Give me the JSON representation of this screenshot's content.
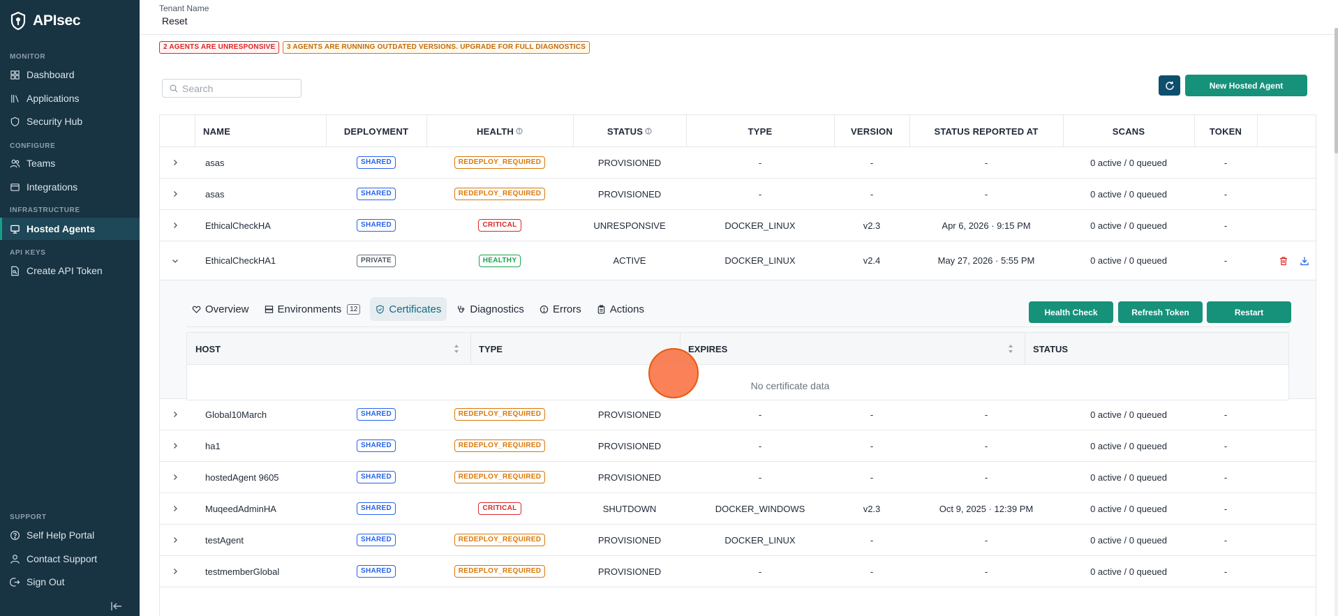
{
  "app": {
    "brand": "APIsec"
  },
  "sidebar": {
    "sections": {
      "monitor": "MONITOR",
      "configure": "CONFIGURE",
      "infrastructure": "INFRASTRUCTURE",
      "api_keys": "API KEYS",
      "support": "SUPPORT"
    },
    "items": {
      "dashboard": "Dashboard",
      "applications": "Applications",
      "security_hub": "Security Hub",
      "teams": "Teams",
      "integrations": "Integrations",
      "hosted_agents": "Hosted Agents",
      "create_api_token": "Create API Token",
      "self_help": "Self Help Portal",
      "contact_support": "Contact Support",
      "sign_out": "Sign Out"
    }
  },
  "header": {
    "tenant_label": "Tenant Name",
    "tenant_value": "Reset"
  },
  "alerts": {
    "unresponsive": "2 AGENTS ARE UNRESPONSIVE",
    "outdated": "3 AGENTS ARE RUNNING OUTDATED VERSIONS. UPGRADE FOR FULL DIAGNOSTICS"
  },
  "toolbar": {
    "search_placeholder": "Search",
    "new_button": "New Hosted Agent"
  },
  "table": {
    "columns": {
      "name": "NAME",
      "deployment": "DEPLOYMENT",
      "health": "HEALTH",
      "status": "STATUS",
      "type": "TYPE",
      "version": "VERSION",
      "reported": "STATUS REPORTED AT",
      "scans": "SCANS",
      "token": "TOKEN"
    },
    "rows": [
      {
        "name": "asas",
        "deployment": "SHARED",
        "health": "REDEPLOY_REQUIRED",
        "status": "PROVISIONED",
        "type": "-",
        "version": "-",
        "reported": "-",
        "scans": "0 active / 0 queued",
        "token": "-"
      },
      {
        "name": "asas",
        "deployment": "SHARED",
        "health": "REDEPLOY_REQUIRED",
        "status": "PROVISIONED",
        "type": "-",
        "version": "-",
        "reported": "-",
        "scans": "0 active / 0 queued",
        "token": "-"
      },
      {
        "name": "EthicalCheckHA",
        "deployment": "SHARED",
        "health": "CRITICAL",
        "status": "UNRESPONSIVE",
        "type": "DOCKER_LINUX",
        "version": "v2.3",
        "reported": "Apr 6, 2026 · 9:15 PM",
        "scans": "0 active / 0 queued",
        "token": "-"
      },
      {
        "name": "EthicalCheckHA1",
        "deployment": "PRIVATE",
        "health": "HEALTHY",
        "status": "ACTIVE",
        "type": "DOCKER_LINUX",
        "version": "v2.4",
        "reported": "May 27, 2026 · 5:55 PM",
        "scans": "0 active / 0 queued",
        "token": "-"
      },
      {
        "name": "Global10March",
        "deployment": "SHARED",
        "health": "REDEPLOY_REQUIRED",
        "status": "PROVISIONED",
        "type": "-",
        "version": "-",
        "reported": "-",
        "scans": "0 active / 0 queued",
        "token": "-"
      },
      {
        "name": "ha1",
        "deployment": "SHARED",
        "health": "REDEPLOY_REQUIRED",
        "status": "PROVISIONED",
        "type": "-",
        "version": "-",
        "reported": "-",
        "scans": "0 active / 0 queued",
        "token": "-"
      },
      {
        "name": "hostedAgent 9605",
        "deployment": "SHARED",
        "health": "REDEPLOY_REQUIRED",
        "status": "PROVISIONED",
        "type": "-",
        "version": "-",
        "reported": "-",
        "scans": "0 active / 0 queued",
        "token": "-"
      },
      {
        "name": "MuqeedAdminHA",
        "deployment": "SHARED",
        "health": "CRITICAL",
        "status": "SHUTDOWN",
        "type": "DOCKER_WINDOWS",
        "version": "v2.3",
        "reported": "Oct 9, 2025 · 12:39 PM",
        "scans": "0 active / 0 queued",
        "token": "-"
      },
      {
        "name": "testAgent",
        "deployment": "SHARED",
        "health": "REDEPLOY_REQUIRED",
        "status": "PROVISIONED",
        "type": "DOCKER_LINUX",
        "version": "-",
        "reported": "-",
        "scans": "0 active / 0 queued",
        "token": "-"
      },
      {
        "name": "testmemberGlobal",
        "deployment": "SHARED",
        "health": "REDEPLOY_REQUIRED",
        "status": "PROVISIONED",
        "type": "-",
        "version": "-",
        "reported": "-",
        "scans": "0 active / 0 queued",
        "token": "-"
      }
    ]
  },
  "expanded": {
    "tabs": {
      "overview": "Overview",
      "environments": "Environments",
      "environments_count": "12",
      "certificates": "Certificates",
      "diagnostics": "Diagnostics",
      "errors": "Errors",
      "actions": "Actions"
    },
    "buttons": {
      "health_check": "Health Check",
      "refresh_token": "Refresh Token",
      "restart": "Restart"
    },
    "cert_columns": {
      "host": "HOST",
      "type": "TYPE",
      "expires": "EXPIRES",
      "status": "STATUS"
    },
    "empty": "No certificate data"
  },
  "colors": {
    "sidebar": "#183342",
    "accent": "#16917a",
    "critical": "#dc2626",
    "warning": "#d97706",
    "shared": "#2563eb",
    "healthy": "#16a34a"
  }
}
